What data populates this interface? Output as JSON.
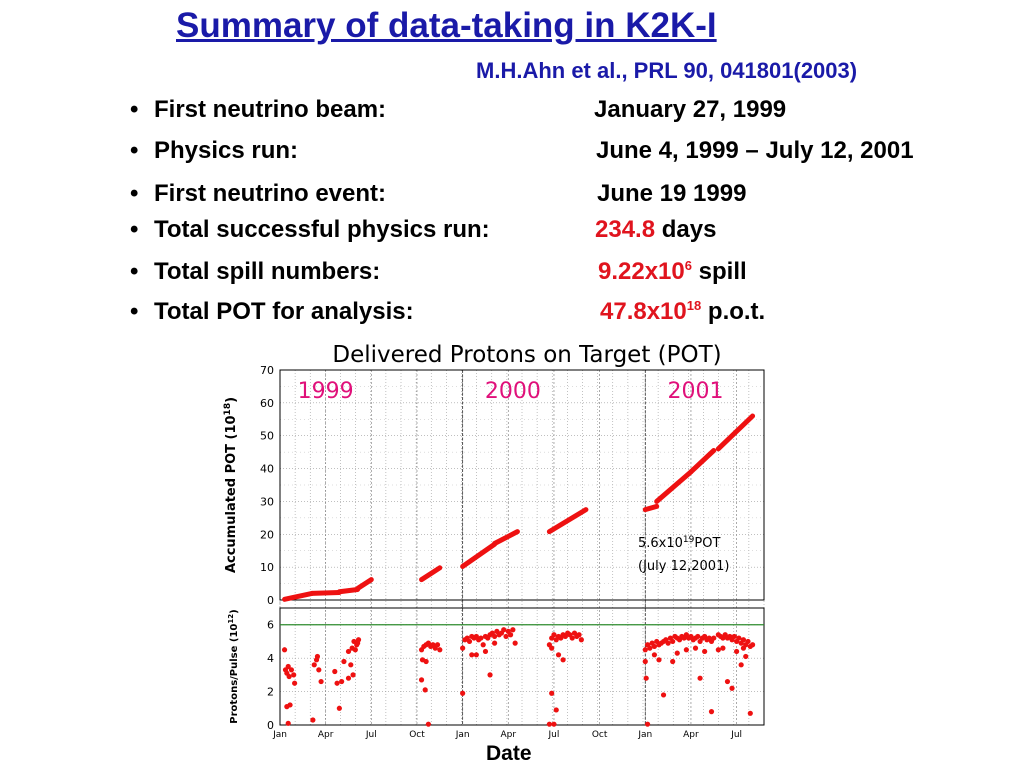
{
  "slide": {
    "title": "Summary of data-taking in K2K-I",
    "reference": "M.H.Ahn et al., PRL 90, 041801(2003)",
    "bullet_glyph": "•",
    "items": [
      {
        "label": "First neutrino beam:",
        "value": "January 27, 1999"
      },
      {
        "label": "Physics run:",
        "value": "June 4, 1999 – July 12, 2001"
      },
      {
        "label": "First neutrino event:",
        "value": "June 19 1999"
      },
      {
        "label": "Total successful physics run:",
        "value_red": "234.8",
        "value_rest": " days"
      },
      {
        "label": "Total spill numbers:",
        "value_red": "9.22x10",
        "sup": "6",
        "value_rest": " spill"
      },
      {
        "label": "Total POT for analysis:",
        "value_red": "47.8x10",
        "sup": "18",
        "value_rest": " p.o.t."
      }
    ],
    "colors": {
      "title": "#1a1aa8",
      "highlight": "#e0141e"
    }
  },
  "chart_data": {
    "type": "scatter",
    "title": "Delivered Protons on Target (POT)",
    "xlabel": "Date",
    "x_tick_labels": [
      "Jan",
      "Apr",
      "Jul",
      "Oct",
      "Jan",
      "Apr",
      "Jul",
      "Oct",
      "Jan",
      "Apr",
      "Jul"
    ],
    "year_labels": [
      "1999",
      "2000",
      "2001"
    ],
    "annotation_line1": "5.6x10",
    "annotation_sup": "19",
    "annotation_line1_end": "POT",
    "annotation_line2": "(July 12,2001)",
    "colors": {
      "points": "#ee1111",
      "year_labels": "#e0107a",
      "reference_line": "#2e8b2e"
    },
    "panels": [
      {
        "name": "accumulated",
        "ylabel": "Accumulated POT (10",
        "ylabel_sup": "18",
        "ylabel_end": ")",
        "ylim": [
          0,
          70
        ],
        "yticks": [
          "0",
          "10",
          "20",
          "30",
          "40",
          "50",
          "60",
          "70"
        ],
        "segments": [
          {
            "x": [
              0.1,
              0.7
            ],
            "y": [
              0.2,
              2.0
            ]
          },
          {
            "x": [
              0.7,
              1.3
            ],
            "y": [
              2.0,
              2.3
            ]
          },
          {
            "x": [
              1.3,
              1.7
            ],
            "y": [
              2.5,
              3.2
            ]
          },
          {
            "x": [
              1.7,
              2.0
            ],
            "y": [
              3.5,
              6.2
            ]
          },
          {
            "x": [
              3.1,
              3.5
            ],
            "y": [
              6.2,
              9.8
            ]
          },
          {
            "x": [
              4.0,
              4.7
            ],
            "y": [
              10.2,
              17.0
            ]
          },
          {
            "x": [
              4.7,
              5.2
            ],
            "y": [
              17.2,
              20.8
            ]
          },
          {
            "x": [
              5.9,
              6.7
            ],
            "y": [
              20.8,
              27.5
            ]
          },
          {
            "x": [
              8.0,
              8.25
            ],
            "y": [
              27.5,
              28.5
            ]
          },
          {
            "x": [
              8.25,
              9.0
            ],
            "y": [
              30.0,
              39.0
            ]
          },
          {
            "x": [
              9.0,
              9.5
            ],
            "y": [
              39.0,
              45.5
            ]
          },
          {
            "x": [
              9.6,
              10.35
            ],
            "y": [
              46.0,
              56.0
            ]
          }
        ]
      },
      {
        "name": "pulse",
        "ylabel": "Protons/Pulse (10",
        "ylabel_sup": "12",
        "ylabel_end": ")",
        "ylim": [
          0,
          7
        ],
        "yticks": [
          "0",
          "2",
          "4",
          "6"
        ],
        "reference_y": 6,
        "points": [
          [
            0.1,
            4.5
          ],
          [
            0.12,
            3.3
          ],
          [
            0.15,
            3.1
          ],
          [
            0.18,
            3.5
          ],
          [
            0.2,
            2.9
          ],
          [
            0.25,
            3.3
          ],
          [
            0.3,
            3.0
          ],
          [
            0.32,
            2.5
          ],
          [
            0.22,
            1.2
          ],
          [
            0.18,
            0.1
          ],
          [
            0.15,
            1.1
          ],
          [
            0.75,
            3.6
          ],
          [
            0.8,
            3.9
          ],
          [
            0.85,
            3.3
          ],
          [
            0.9,
            2.6
          ],
          [
            0.72,
            0.3
          ],
          [
            0.82,
            4.1
          ],
          [
            1.2,
            3.2
          ],
          [
            1.25,
            2.5
          ],
          [
            1.3,
            1.0
          ],
          [
            1.35,
            2.6
          ],
          [
            1.4,
            3.8
          ],
          [
            1.5,
            4.4
          ],
          [
            1.55,
            3.6
          ],
          [
            1.58,
            4.6
          ],
          [
            1.62,
            5.0
          ],
          [
            1.65,
            4.5
          ],
          [
            1.68,
            4.8
          ],
          [
            1.7,
            4.9
          ],
          [
            1.72,
            5.1
          ],
          [
            1.6,
            3.0
          ],
          [
            1.5,
            2.8
          ],
          [
            3.1,
            4.5
          ],
          [
            3.15,
            4.7
          ],
          [
            3.2,
            4.8
          ],
          [
            3.25,
            4.9
          ],
          [
            3.3,
            4.7
          ],
          [
            3.35,
            4.8
          ],
          [
            3.4,
            4.6
          ],
          [
            3.45,
            4.8
          ],
          [
            3.5,
            4.5
          ],
          [
            3.2,
            3.8
          ],
          [
            3.1,
            2.7
          ],
          [
            3.18,
            2.1
          ],
          [
            3.25,
            0.05
          ],
          [
            3.12,
            3.9
          ],
          [
            4.0,
            4.6
          ],
          [
            4.05,
            5.1
          ],
          [
            4.1,
            5.2
          ],
          [
            4.15,
            5.0
          ],
          [
            4.2,
            5.3
          ],
          [
            4.25,
            5.2
          ],
          [
            4.3,
            5.3
          ],
          [
            4.35,
            5.1
          ],
          [
            4.4,
            5.2
          ],
          [
            4.45,
            4.8
          ],
          [
            4.5,
            5.3
          ],
          [
            4.55,
            5.2
          ],
          [
            4.6,
            5.4
          ],
          [
            4.65,
            5.5
          ],
          [
            4.7,
            5.3
          ],
          [
            4.75,
            5.6
          ],
          [
            4.8,
            5.4
          ],
          [
            4.85,
            5.5
          ],
          [
            4.9,
            5.7
          ],
          [
            4.95,
            5.3
          ],
          [
            5.0,
            5.6
          ],
          [
            5.05,
            5.4
          ],
          [
            5.1,
            5.7
          ],
          [
            5.15,
            4.9
          ],
          [
            4.0,
            1.9
          ],
          [
            4.3,
            4.2
          ],
          [
            4.5,
            4.4
          ],
          [
            4.6,
            3.0
          ],
          [
            4.7,
            4.9
          ],
          [
            4.2,
            4.2
          ],
          [
            5.9,
            4.8
          ],
          [
            5.95,
            5.2
          ],
          [
            6.0,
            5.4
          ],
          [
            6.05,
            5.1
          ],
          [
            6.1,
            5.3
          ],
          [
            6.15,
            5.2
          ],
          [
            6.2,
            5.4
          ],
          [
            6.25,
            5.3
          ],
          [
            6.3,
            5.5
          ],
          [
            6.35,
            5.4
          ],
          [
            6.4,
            5.2
          ],
          [
            6.45,
            5.5
          ],
          [
            6.5,
            5.3
          ],
          [
            6.55,
            5.4
          ],
          [
            6.6,
            5.1
          ],
          [
            5.9,
            0.05
          ],
          [
            6.0,
            0.05
          ],
          [
            5.95,
            1.9
          ],
          [
            6.05,
            0.9
          ],
          [
            6.2,
            3.9
          ],
          [
            6.1,
            4.2
          ],
          [
            5.95,
            4.6
          ],
          [
            8.0,
            4.5
          ],
          [
            8.05,
            4.8
          ],
          [
            8.1,
            4.6
          ],
          [
            8.15,
            4.9
          ],
          [
            8.2,
            4.7
          ],
          [
            8.25,
            5.0
          ],
          [
            8.3,
            4.8
          ],
          [
            8.35,
            4.9
          ],
          [
            8.4,
            5.0
          ],
          [
            8.45,
            5.1
          ],
          [
            8.5,
            4.9
          ],
          [
            8.55,
            5.2
          ],
          [
            8.6,
            5.0
          ],
          [
            8.65,
            5.3
          ],
          [
            8.7,
            5.2
          ],
          [
            8.75,
            5.1
          ],
          [
            8.8,
            5.3
          ],
          [
            8.85,
            5.2
          ],
          [
            8.9,
            5.4
          ],
          [
            8.95,
            5.2
          ],
          [
            9.0,
            5.3
          ],
          [
            9.05,
            5.1
          ],
          [
            9.1,
            5.2
          ],
          [
            9.15,
            5.3
          ],
          [
            9.2,
            5.0
          ],
          [
            9.25,
            5.2
          ],
          [
            9.3,
            5.3
          ],
          [
            9.35,
            5.1
          ],
          [
            9.4,
            5.2
          ],
          [
            9.45,
            5.0
          ],
          [
            9.5,
            5.2
          ],
          [
            8.0,
            3.8
          ],
          [
            8.02,
            2.8
          ],
          [
            8.05,
            0.05
          ],
          [
            8.2,
            4.2
          ],
          [
            8.3,
            3.9
          ],
          [
            8.4,
            1.8
          ],
          [
            8.6,
            3.8
          ],
          [
            8.7,
            4.3
          ],
          [
            8.9,
            4.5
          ],
          [
            9.1,
            4.6
          ],
          [
            9.3,
            4.4
          ],
          [
            9.45,
            0.8
          ],
          [
            9.2,
            2.8
          ],
          [
            9.6,
            5.4
          ],
          [
            9.65,
            5.3
          ],
          [
            9.7,
            5.2
          ],
          [
            9.75,
            5.4
          ],
          [
            9.8,
            5.2
          ],
          [
            9.85,
            5.3
          ],
          [
            9.9,
            5.1
          ],
          [
            9.95,
            5.3
          ],
          [
            10.0,
            5.0
          ],
          [
            10.05,
            5.2
          ],
          [
            10.1,
            4.9
          ],
          [
            10.15,
            5.1
          ],
          [
            10.2,
            4.8
          ],
          [
            10.25,
            5.0
          ],
          [
            10.3,
            4.7
          ],
          [
            10.35,
            4.8
          ],
          [
            9.6,
            4.5
          ],
          [
            9.7,
            4.6
          ],
          [
            9.8,
            2.6
          ],
          [
            9.9,
            2.2
          ],
          [
            10.0,
            4.4
          ],
          [
            10.1,
            3.6
          ],
          [
            10.2,
            4.1
          ],
          [
            10.3,
            0.7
          ],
          [
            10.15,
            4.6
          ]
        ]
      }
    ]
  }
}
